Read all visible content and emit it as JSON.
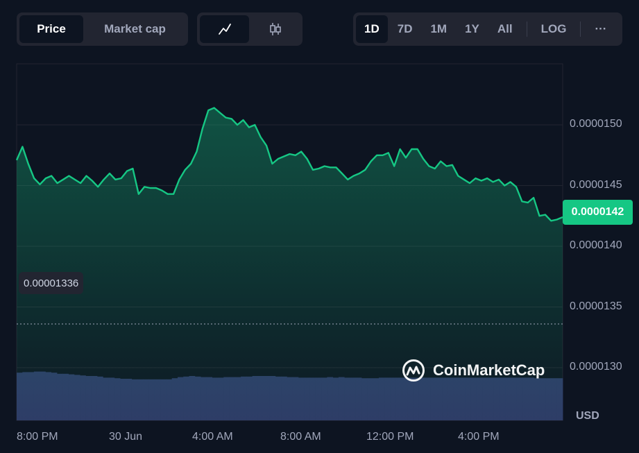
{
  "toolbar": {
    "type_tabs": [
      {
        "label": "Price",
        "active": true
      },
      {
        "label": "Market cap",
        "active": false
      }
    ],
    "style_tabs": [
      {
        "icon": "line-chart-icon",
        "active": true
      },
      {
        "icon": "candlestick-icon",
        "active": false
      }
    ],
    "range_tabs": [
      {
        "label": "1D",
        "active": true
      },
      {
        "label": "7D",
        "active": false
      },
      {
        "label": "1M",
        "active": false
      },
      {
        "label": "1Y",
        "active": false
      },
      {
        "label": "All",
        "active": false
      }
    ],
    "log_label": "LOG",
    "more_label": "···"
  },
  "current_price": "0.0000142",
  "low_marker": "0.00001336",
  "currency": "USD",
  "watermark": "CoinMarketCap",
  "colors": {
    "background": "#0d1421",
    "line": "#16c784",
    "volume": "#2e3a66",
    "grid": "#222531"
  },
  "chart_data": {
    "type": "area",
    "x_tick_labels": [
      "8:00 PM",
      "30 Jun",
      "4:00 AM",
      "8:00 AM",
      "12:00 PM",
      "4:00 PM"
    ],
    "y_tick_labels": [
      "0.0000150",
      "0.0000145",
      "0.0000140",
      "0.0000135",
      "0.0000130"
    ],
    "ylim": [
      1.3e-05,
      1.5e-05
    ],
    "low_reference": 1.336e-05,
    "grid": true,
    "series": [
      {
        "values": [
          1.471e-05,
          1.482e-05,
          1.468e-05,
          1.456e-05,
          1.451e-05,
          1.456e-05,
          1.458e-05,
          1.452e-05,
          1.455e-05,
          1.458e-05,
          1.455e-05,
          1.452e-05,
          1.458e-05,
          1.454e-05,
          1.449e-05,
          1.455e-05,
          1.46e-05,
          1.455e-05,
          1.456e-05,
          1.462e-05,
          1.464e-05,
          1.443e-05,
          1.449e-05,
          1.448e-05,
          1.448e-05,
          1.446e-05,
          1.443e-05,
          1.443e-05,
          1.455e-05,
          1.463e-05,
          1.468e-05,
          1.478e-05,
          1.497e-05,
          1.512e-05,
          1.514e-05,
          1.51e-05,
          1.506e-05,
          1.505e-05,
          1.5e-05,
          1.504e-05,
          1.498e-05,
          1.5e-05,
          1.49e-05,
          1.483e-05,
          1.468e-05,
          1.472e-05,
          1.474e-05,
          1.476e-05,
          1.475e-05,
          1.478e-05,
          1.472e-05,
          1.463e-05,
          1.464e-05,
          1.466e-05,
          1.465e-05,
          1.465e-05,
          1.46e-05,
          1.455e-05,
          1.458e-05,
          1.46e-05,
          1.463e-05,
          1.47e-05,
          1.475e-05,
          1.475e-05,
          1.477e-05,
          1.466e-05,
          1.48e-05,
          1.473e-05,
          1.48e-05,
          1.48e-05,
          1.472e-05,
          1.466e-05,
          1.464e-05,
          1.47e-05,
          1.466e-05,
          1.467e-05,
          1.458e-05,
          1.455e-05,
          1.452e-05,
          1.456e-05,
          1.454e-05,
          1.456e-05,
          1.453e-05,
          1.455e-05,
          1.45e-05,
          1.453e-05,
          1.449e-05,
          1.437e-05,
          1.436e-05,
          1.44e-05,
          1.425e-05,
          1.426e-05,
          1.421e-05,
          1.422e-05,
          1.424e-05
        ]
      }
    ],
    "volume": [
      0.86,
      0.87,
      0.87,
      0.88,
      0.88,
      0.87,
      0.86,
      0.84,
      0.84,
      0.83,
      0.82,
      0.81,
      0.8,
      0.8,
      0.79,
      0.77,
      0.77,
      0.76,
      0.75,
      0.75,
      0.74,
      0.74,
      0.74,
      0.74,
      0.74,
      0.74,
      0.74,
      0.76,
      0.78,
      0.79,
      0.8,
      0.79,
      0.78,
      0.78,
      0.77,
      0.77,
      0.78,
      0.78,
      0.78,
      0.79,
      0.79,
      0.8,
      0.8,
      0.8,
      0.8,
      0.79,
      0.79,
      0.78,
      0.78,
      0.77,
      0.77,
      0.77,
      0.77,
      0.77,
      0.78,
      0.77,
      0.78,
      0.77,
      0.77,
      0.77,
      0.76,
      0.76,
      0.76,
      0.77,
      0.77,
      0.77,
      0.77,
      0.77,
      0.77,
      0.77,
      0.77,
      0.77,
      0.77,
      0.77,
      0.77,
      0.77,
      0.77,
      0.77,
      0.77,
      0.77,
      0.77,
      0.77,
      0.77,
      0.77,
      0.77,
      0.77,
      0.77,
      0.77,
      0.77,
      0.77,
      0.76,
      0.76,
      0.76,
      0.76,
      0.76
    ]
  }
}
